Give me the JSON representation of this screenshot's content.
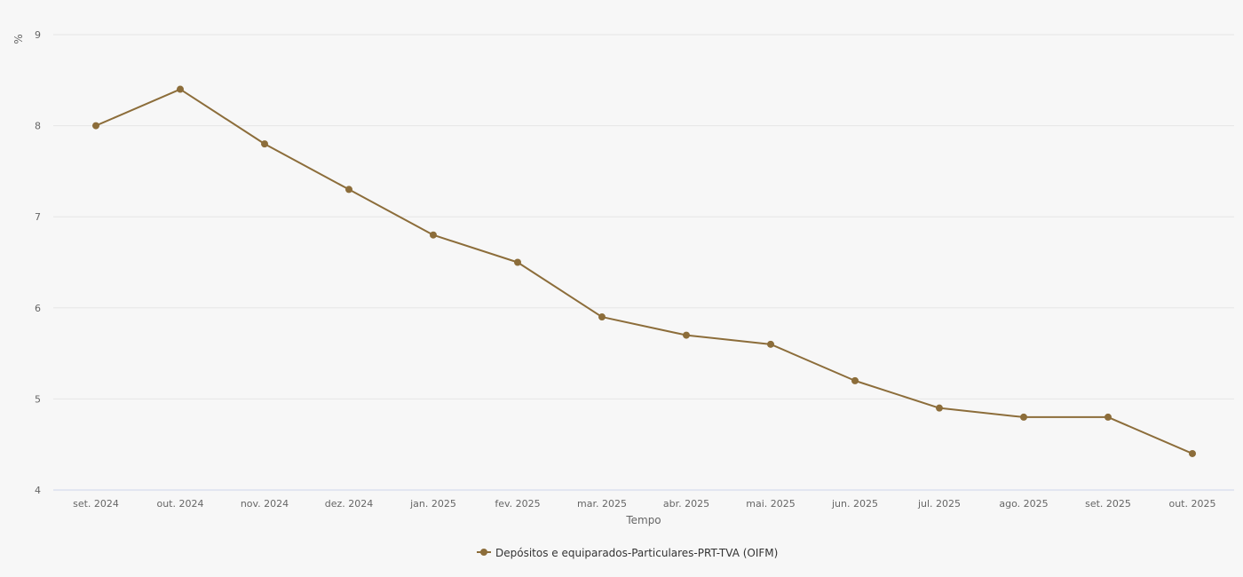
{
  "chart_data": {
    "type": "line",
    "ylabel": "%",
    "xlabel": "Tempo",
    "ylim": [
      4,
      9
    ],
    "yticks": [
      4,
      5,
      6,
      7,
      8,
      9
    ],
    "grid": true,
    "legend_position": "bottom-center",
    "categories": [
      "set. 2024",
      "out. 2024",
      "nov. 2024",
      "dez. 2024",
      "jan. 2025",
      "fev. 2025",
      "mar. 2025",
      "abr. 2025",
      "mai. 2025",
      "jun. 2025",
      "jul. 2025",
      "ago. 2025",
      "set. 2025",
      "out. 2025"
    ],
    "series": [
      {
        "name": "Depósitos e equiparados-Particulares-PRT-TVA (OIFM)",
        "color": "#8c6d3a",
        "values": [
          8.0,
          8.4,
          7.8,
          7.3,
          6.8,
          6.5,
          5.9,
          5.7,
          5.6,
          5.2,
          4.9,
          4.8,
          4.8,
          4.4
        ]
      }
    ]
  }
}
